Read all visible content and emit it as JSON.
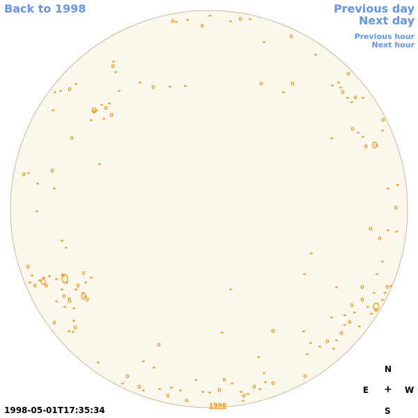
{
  "nav": {
    "back_label": "Back to 1998",
    "prev_day_label": "Previous day",
    "next_day_label": "Next day",
    "prev_hour_label": "Previous hour",
    "next_hour_label": "Next hour"
  },
  "image": {
    "timestamp": "1998-05-01T17:35:34",
    "year_link": "1998"
  },
  "compass": {
    "north": "N",
    "east": "E",
    "center": "+",
    "west": "W",
    "south": "S"
  },
  "colors": {
    "link": "#6495ed",
    "disk_fill": "#fdf8ee",
    "disk_edge": "#c8b89a",
    "contour": "#ff8c00"
  }
}
